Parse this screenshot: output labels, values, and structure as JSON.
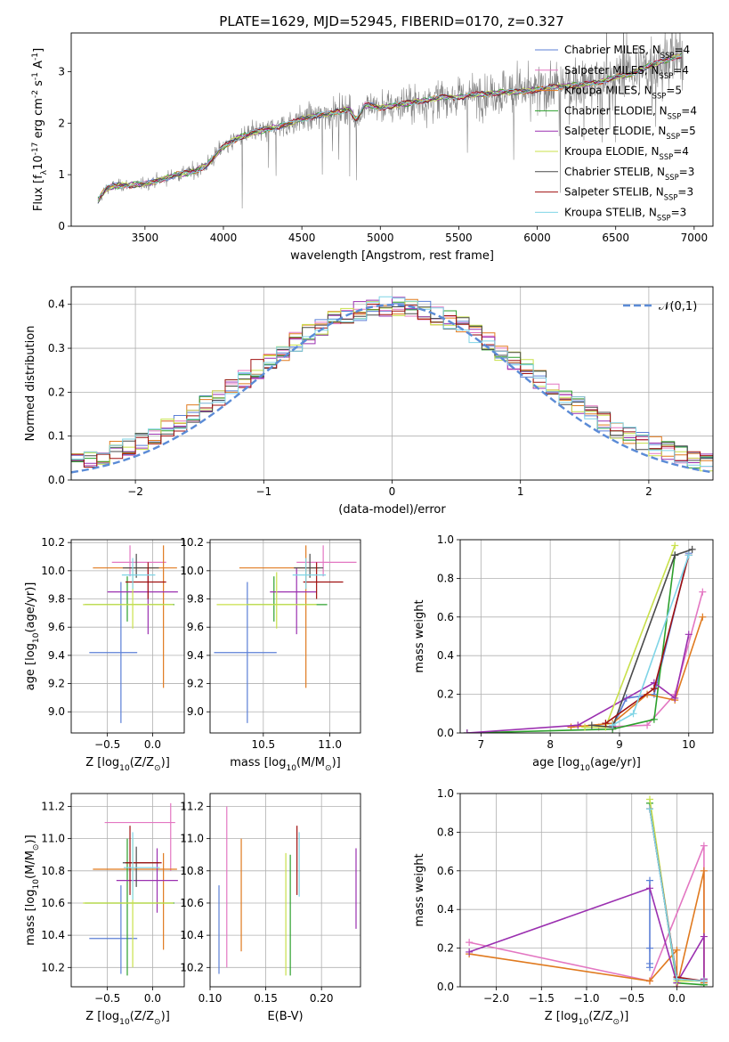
{
  "colors": {
    "chabrier_miles": "#5b7fd6",
    "salpeter_miles": "#e377c2",
    "kroupa_miles": "#e07a1f",
    "chabrier_elodie": "#2ca02c",
    "salpeter_elodie": "#9b30b0",
    "kroupa_elodie": "#c8e04a",
    "chabrier_stelib": "#4a4a4a",
    "salpeter_stelib": "#a01010",
    "kroupa_stelib": "#7fd4e6",
    "spectrum": "#7f7f7f",
    "gaussian": "#5b8bd6",
    "grid": "#b0b0b0"
  },
  "chart_data": [
    {
      "id": "spectrum",
      "type": "line",
      "title": "PLATE=1629, MJD=52945, FIBERID=0170, z=0.327",
      "xlabel": "wavelength [Angstrom, rest frame]",
      "ylabel": "Flux [f$_\\lambda$10$^{-17}$ erg cm$^{-2}$ s$^{-1}$ A$^{-1}$]",
      "xlim": [
        3030,
        7120
      ],
      "ylim": [
        0,
        3.75
      ],
      "xticks": [
        3500,
        4000,
        4500,
        5000,
        5500,
        6000,
        6500,
        7000
      ],
      "yticks": [
        0,
        1,
        2,
        3
      ],
      "grid": false,
      "legend_position": "right",
      "observed_continuum": {
        "x": [
          3200,
          3250,
          3300,
          3400,
          3500,
          3600,
          3700,
          3800,
          3900,
          4000,
          4100,
          4200,
          4300,
          4400,
          4500,
          4600,
          4700,
          4800,
          4850,
          4900,
          5000,
          5100,
          5200,
          5300,
          5400,
          5500,
          5600,
          5700,
          5800,
          5900,
          6000,
          6100,
          6200,
          6300,
          6400,
          6500,
          6600,
          6700,
          6800,
          6900
        ],
        "y": [
          0.5,
          0.72,
          0.78,
          0.8,
          0.82,
          0.9,
          1.0,
          1.05,
          1.2,
          1.55,
          1.72,
          1.82,
          1.9,
          1.97,
          2.08,
          2.15,
          2.2,
          2.28,
          2.05,
          2.35,
          2.3,
          2.35,
          2.4,
          2.45,
          2.5,
          2.5,
          2.55,
          2.58,
          2.6,
          2.62,
          2.65,
          2.7,
          2.72,
          2.75,
          2.8,
          2.9,
          2.95,
          3.1,
          3.2,
          3.3
        ]
      },
      "series": [
        {
          "name": "Chabrier MILES, N$_{SSP}$=4"
        },
        {
          "name": "Salpeter MILES, N$_{SSP}$=4"
        },
        {
          "name": "Kroupa MILES, N$_{SSP}$=5"
        },
        {
          "name": "Chabrier ELODIE, N$_{SSP}$=4"
        },
        {
          "name": "Salpeter ELODIE, N$_{SSP}$=5"
        },
        {
          "name": "Kroupa ELODIE, N$_{SSP}$=4"
        },
        {
          "name": "Chabrier STELIB, N$_{SSP}$=3"
        },
        {
          "name": "Salpeter STELIB, N$_{SSP}$=3"
        },
        {
          "name": "Kroupa STELIB, N$_{SSP}$=3"
        }
      ]
    },
    {
      "id": "residuals",
      "type": "histogram",
      "xlabel": "(data-model)/error",
      "ylabel": "Normed distribution",
      "xlim": [
        -2.5,
        2.5
      ],
      "ylim": [
        0,
        0.44
      ],
      "xticks": [
        -2,
        -1,
        0,
        1,
        2
      ],
      "yticks": [
        0.0,
        0.1,
        0.2,
        0.3,
        0.4
      ],
      "grid": true,
      "bin_width": 0.1,
      "legend": "$\\mathcal{N}(0,1)$",
      "legend_position": "top-right",
      "reference_curve": "gaussian mean 0, sigma 1"
    },
    {
      "id": "age_vs_Z",
      "type": "errorbar",
      "xlabel": "Z [log$_{10}$(Z/Z$_\\odot$)]",
      "ylabel": "age  [log$_{10}$(age/yr)]",
      "xlim": [
        -0.9,
        0.35
      ],
      "ylim": [
        8.85,
        10.22
      ],
      "xticks": [
        -0.5,
        0.0
      ],
      "yticks": [
        9.0,
        9.2,
        9.4,
        9.6,
        9.8,
        10.0,
        10.2
      ],
      "grid": true,
      "points": [
        {
          "x": -0.35,
          "xerr": [
            0.35,
            0.18
          ],
          "y": 9.42,
          "yerr": [
            0.5,
            0.5
          ],
          "color": "chabrier_miles"
        },
        {
          "x": -0.25,
          "xerr": [
            0.2,
            0.4
          ],
          "y": 10.06,
          "yerr": [
            0.1,
            0.12
          ],
          "color": "salpeter_miles"
        },
        {
          "x": 0.12,
          "xerr": [
            0.78,
            0.15
          ],
          "y": 10.02,
          "yerr": [
            0.85,
            0.16
          ],
          "color": "kroupa_miles"
        },
        {
          "x": -0.28,
          "xerr": [
            0.47,
            0.52
          ],
          "y": 9.76,
          "yerr": [
            0.12,
            0.2
          ],
          "color": "chabrier_elodie"
        },
        {
          "x": -0.05,
          "xerr": [
            0.45,
            0.33
          ],
          "y": 9.85,
          "yerr": [
            0.3,
            0.17
          ],
          "color": "salpeter_elodie"
        },
        {
          "x": -0.22,
          "xerr": [
            0.55,
            0.45
          ],
          "y": 9.76,
          "yerr": [
            0.17,
            0.23
          ],
          "color": "kroupa_elodie"
        },
        {
          "x": -0.18,
          "xerr": [
            0.15,
            0.25
          ],
          "y": 10.02,
          "yerr": [
            0.07,
            0.1
          ],
          "color": "chabrier_stelib"
        },
        {
          "x": -0.05,
          "xerr": [
            0.25,
            0.2
          ],
          "y": 9.92,
          "yerr": [
            0.12,
            0.14
          ],
          "color": "salpeter_stelib"
        },
        {
          "x": -0.22,
          "xerr": [
            0.12,
            0.25
          ],
          "y": 9.97,
          "yerr": [
            0.1,
            0.12
          ],
          "color": "kroupa_stelib"
        }
      ]
    },
    {
      "id": "age_vs_mass",
      "type": "errorbar",
      "xlabel": "mass [log$_{10}$(M/M$_\\odot$)]",
      "ylabel": "",
      "xlim": [
        10.1,
        11.23
      ],
      "ylim": [
        8.85,
        10.22
      ],
      "xticks": [
        10.5,
        11.0
      ],
      "yticks": [
        9.0,
        9.2,
        9.4,
        9.6,
        9.8,
        10.0,
        10.2
      ],
      "grid": true,
      "points": [
        {
          "x": 10.38,
          "xerr": [
            0.25,
            0.22
          ],
          "y": 9.42,
          "yerr": [
            0.5,
            0.5
          ],
          "color": "chabrier_miles"
        },
        {
          "x": 10.95,
          "xerr": [
            0.2,
            0.25
          ],
          "y": 10.06,
          "yerr": [
            0.1,
            0.12
          ],
          "color": "salpeter_miles"
        },
        {
          "x": 10.82,
          "xerr": [
            0.5,
            0.1
          ],
          "y": 10.02,
          "yerr": [
            0.85,
            0.16
          ],
          "color": "kroupa_miles"
        },
        {
          "x": 10.58,
          "xerr": [
            0.2,
            0.4
          ],
          "y": 9.76,
          "yerr": [
            0.12,
            0.2
          ],
          "color": "chabrier_elodie"
        },
        {
          "x": 10.75,
          "xerr": [
            0.2,
            0.15
          ],
          "y": 9.85,
          "yerr": [
            0.3,
            0.17
          ],
          "color": "salpeter_elodie"
        },
        {
          "x": 10.6,
          "xerr": [
            0.45,
            0.3
          ],
          "y": 9.76,
          "yerr": [
            0.17,
            0.23
          ],
          "color": "kroupa_elodie"
        },
        {
          "x": 10.85,
          "xerr": [
            0.12,
            0.1
          ],
          "y": 10.02,
          "yerr": [
            0.07,
            0.1
          ],
          "color": "chabrier_stelib"
        },
        {
          "x": 10.9,
          "xerr": [
            0.1,
            0.2
          ],
          "y": 9.92,
          "yerr": [
            0.12,
            0.14
          ],
          "color": "salpeter_stelib"
        },
        {
          "x": 10.82,
          "xerr": [
            0.1,
            0.15
          ],
          "y": 9.97,
          "yerr": [
            0.1,
            0.12
          ],
          "color": "kroupa_stelib"
        }
      ]
    },
    {
      "id": "weight_vs_age",
      "type": "line",
      "xlabel": "age  [log$_{10}$(age/yr)]",
      "ylabel": "mass weight",
      "xlim": [
        6.7,
        10.35
      ],
      "ylim": [
        0,
        1.0
      ],
      "xticks": [
        7,
        8,
        9,
        10
      ],
      "yticks": [
        0.0,
        0.2,
        0.4,
        0.6,
        0.8,
        1.0
      ],
      "grid": true,
      "series": [
        {
          "color": "chabrier_miles",
          "x": [
            8.9,
            9.1,
            9.5,
            10.0
          ],
          "y": [
            0.03,
            0.18,
            0.2,
            0.93
          ]
        },
        {
          "color": "salpeter_miles",
          "x": [
            8.7,
            9.4,
            9.8,
            10.2
          ],
          "y": [
            0.03,
            0.04,
            0.2,
            0.73
          ]
        },
        {
          "color": "kroupa_miles",
          "x": [
            8.3,
            8.9,
            9.4,
            9.8,
            10.2
          ],
          "y": [
            0.03,
            0.05,
            0.2,
            0.17,
            0.6
          ]
        },
        {
          "color": "chabrier_elodie",
          "x": [
            6.8,
            8.9,
            9.5,
            9.8
          ],
          "y": [
            0.0,
            0.02,
            0.07,
            0.92
          ]
        },
        {
          "color": "salpeter_elodie",
          "x": [
            6.8,
            8.4,
            9.5,
            9.8,
            10.0
          ],
          "y": [
            0.0,
            0.04,
            0.26,
            0.18,
            0.51
          ]
        },
        {
          "color": "kroupa_elodie",
          "x": [
            8.5,
            8.8,
            9.8
          ],
          "y": [
            0.03,
            0.03,
            0.97
          ]
        },
        {
          "color": "chabrier_stelib",
          "x": [
            8.6,
            8.9,
            9.8,
            10.05
          ],
          "y": [
            0.04,
            0.03,
            0.92,
            0.95
          ]
        },
        {
          "color": "salpeter_stelib",
          "x": [
            8.8,
            9.5,
            10.0
          ],
          "y": [
            0.05,
            0.23,
            0.92
          ]
        },
        {
          "color": "kroupa_stelib",
          "x": [
            8.9,
            9.2,
            10.0
          ],
          "y": [
            0.04,
            0.1,
            0.92
          ]
        }
      ]
    },
    {
      "id": "mass_vs_Z",
      "type": "errorbar",
      "xlabel": "Z [log$_{10}$(Z/Z$_\\odot$)]",
      "ylabel": "mass [log$_{10}$(M/M$_\\odot$)]",
      "xlim": [
        -0.9,
        0.35
      ],
      "ylim": [
        10.08,
        11.28
      ],
      "xticks": [
        -0.5,
        0.0
      ],
      "yticks": [
        10.2,
        10.4,
        10.6,
        10.8,
        11.0,
        11.2
      ],
      "grid": true,
      "points": [
        {
          "x": -0.35,
          "xerr": [
            0.35,
            0.18
          ],
          "y": 10.38,
          "yerr": [
            0.22,
            0.33
          ],
          "color": "chabrier_miles"
        },
        {
          "x": 0.2,
          "xerr": [
            0.73,
            0.05
          ],
          "y": 11.1,
          "yerr": [
            0.3,
            0.12
          ],
          "color": "salpeter_miles"
        },
        {
          "x": 0.12,
          "xerr": [
            0.78,
            0.15
          ],
          "y": 10.81,
          "yerr": [
            0.5,
            0.1
          ],
          "color": "kroupa_miles"
        },
        {
          "x": -0.28,
          "xerr": [
            0.47,
            0.52
          ],
          "y": 10.6,
          "yerr": [
            0.45,
            0.4
          ],
          "color": "chabrier_elodie"
        },
        {
          "x": 0.05,
          "xerr": [
            0.45,
            0.23
          ],
          "y": 10.74,
          "yerr": [
            0.2,
            0.2
          ],
          "color": "salpeter_elodie"
        },
        {
          "x": -0.22,
          "xerr": [
            0.55,
            0.45
          ],
          "y": 10.6,
          "yerr": [
            0.4,
            0.4
          ],
          "color": "kroupa_elodie"
        },
        {
          "x": -0.18,
          "xerr": [
            0.15,
            0.25
          ],
          "y": 10.85,
          "yerr": [
            0.15,
            0.1
          ],
          "color": "chabrier_stelib"
        },
        {
          "x": -0.25,
          "xerr": [
            0.05,
            0.35
          ],
          "y": 10.85,
          "yerr": [
            0.2,
            0.23
          ],
          "color": "salpeter_stelib"
        },
        {
          "x": -0.22,
          "xerr": [
            0.1,
            0.3
          ],
          "y": 10.82,
          "yerr": [
            0.2,
            0.22
          ],
          "color": "kroupa_stelib"
        }
      ]
    },
    {
      "id": "mass_vs_ebv",
      "type": "errorbar",
      "xlabel": "E(B-V)",
      "ylabel": "",
      "xlim": [
        0.1,
        0.235
      ],
      "ylim": [
        10.08,
        11.28
      ],
      "xticks": [
        0.1,
        0.15,
        0.2
      ],
      "yticks": [
        10.2,
        10.4,
        10.6,
        10.8,
        11.0,
        11.2
      ],
      "grid": true,
      "points": [
        {
          "x": 0.108,
          "y": 10.43,
          "yerr": [
            0.27,
            0.28
          ],
          "color": "chabrier_miles"
        },
        {
          "x": 0.115,
          "y": 10.7,
          "yerr": [
            0.5,
            0.5
          ],
          "color": "salpeter_miles"
        },
        {
          "x": 0.128,
          "y": 10.65,
          "yerr": [
            0.35,
            0.35
          ],
          "color": "kroupa_miles"
        },
        {
          "x": 0.168,
          "y": 10.58,
          "yerr": [
            0.43,
            0.33
          ],
          "color": "kroupa_elodie"
        },
        {
          "x": 0.172,
          "y": 10.55,
          "yerr": [
            0.4,
            0.35
          ],
          "color": "chabrier_elodie"
        },
        {
          "x": 0.178,
          "y": 10.9,
          "yerr": [
            0.25,
            0.18
          ],
          "color": "salpeter_stelib"
        },
        {
          "x": 0.18,
          "y": 10.84,
          "yerr": [
            0.2,
            0.2
          ],
          "color": "kroupa_stelib"
        },
        {
          "x": 0.231,
          "y": 10.69,
          "yerr": [
            0.25,
            0.25
          ],
          "color": "salpeter_elodie"
        }
      ]
    },
    {
      "id": "weight_vs_Z",
      "type": "line",
      "xlabel": "Z [log$_{10}$(Z/Z$_\\odot$)]",
      "ylabel": "mass weight",
      "xlim": [
        -2.4,
        0.4
      ],
      "ylim": [
        0,
        1.0
      ],
      "xticks": [
        -2.0,
        -1.5,
        -1.0,
        -0.5,
        0.0
      ],
      "yticks": [
        0.0,
        0.2,
        0.4,
        0.6,
        0.8,
        1.0
      ],
      "grid": true,
      "series": [
        {
          "color": "chabrier_miles",
          "x": [
            -0.3,
            -0.3,
            -0.3,
            -0.3
          ],
          "y": [
            0.55,
            0.2,
            0.12,
            0.1
          ]
        },
        {
          "color": "salpeter_miles",
          "x": [
            -2.3,
            -0.3,
            0.3,
            0.3
          ],
          "y": [
            0.23,
            0.03,
            0.73,
            0.04
          ]
        },
        {
          "color": "kroupa_miles",
          "x": [
            -2.3,
            -0.3,
            0.0,
            0.0,
            0.3,
            0.3
          ],
          "y": [
            0.17,
            0.03,
            0.19,
            0.0,
            0.6,
            0.02
          ]
        },
        {
          "color": "chabrier_elodie",
          "x": [
            -0.3,
            0.0,
            0.3,
            0.3
          ],
          "y": [
            0.95,
            0.02,
            0.01,
            0.01
          ]
        },
        {
          "color": "salpeter_elodie",
          "x": [
            -2.3,
            -0.3,
            0.0,
            0.3,
            0.3
          ],
          "y": [
            0.18,
            0.51,
            0.02,
            0.26,
            0.04
          ]
        },
        {
          "color": "kroupa_elodie",
          "x": [
            -0.3,
            0.0,
            0.3
          ],
          "y": [
            0.97,
            0.03,
            0.03
          ]
        },
        {
          "color": "chabrier_stelib",
          "x": [
            -0.3,
            0.0,
            0.3
          ],
          "y": [
            0.92,
            0.04,
            0.03
          ]
        },
        {
          "color": "salpeter_stelib",
          "x": [
            -0.3,
            0.0,
            0.3
          ],
          "y": [
            0.92,
            0.05,
            0.03
          ]
        },
        {
          "color": "kroupa_stelib",
          "x": [
            -0.3,
            0.0,
            0.3
          ],
          "y": [
            0.92,
            0.04,
            0.03
          ]
        }
      ]
    }
  ]
}
